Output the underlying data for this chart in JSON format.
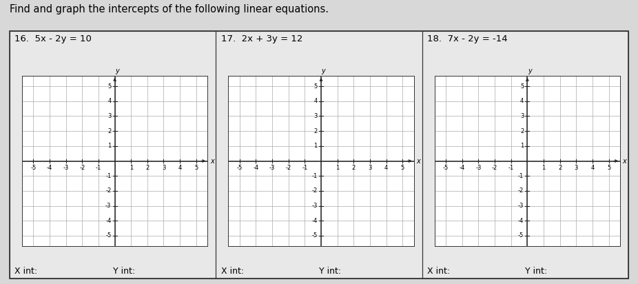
{
  "header": "Find and graph the intercepts of the following linear equations.",
  "problems": [
    {
      "number": "16.",
      "equation_display": "5x - 2y = 10"
    },
    {
      "number": "17.",
      "equation_display": "2x + 3y = 12"
    },
    {
      "number": "18.",
      "equation_display": "7x - 2y = -14"
    }
  ],
  "background_color": "#d8d8d8",
  "panel_bg": "#e8e8e8",
  "grid_bg": "#ffffff",
  "grid_color": "#aaaaaa",
  "axis_color": "#222222",
  "border_color": "#333333",
  "header_fontsize": 10.5,
  "equation_fontsize": 9.5,
  "label_fontsize": 9,
  "tick_fontsize": 6,
  "xint_label": "X int:",
  "yint_label": "Y int:",
  "xlim": [
    -5.7,
    5.7
  ],
  "ylim": [
    -5.7,
    5.7
  ],
  "tick_range_min": -5,
  "tick_range_max": 5
}
